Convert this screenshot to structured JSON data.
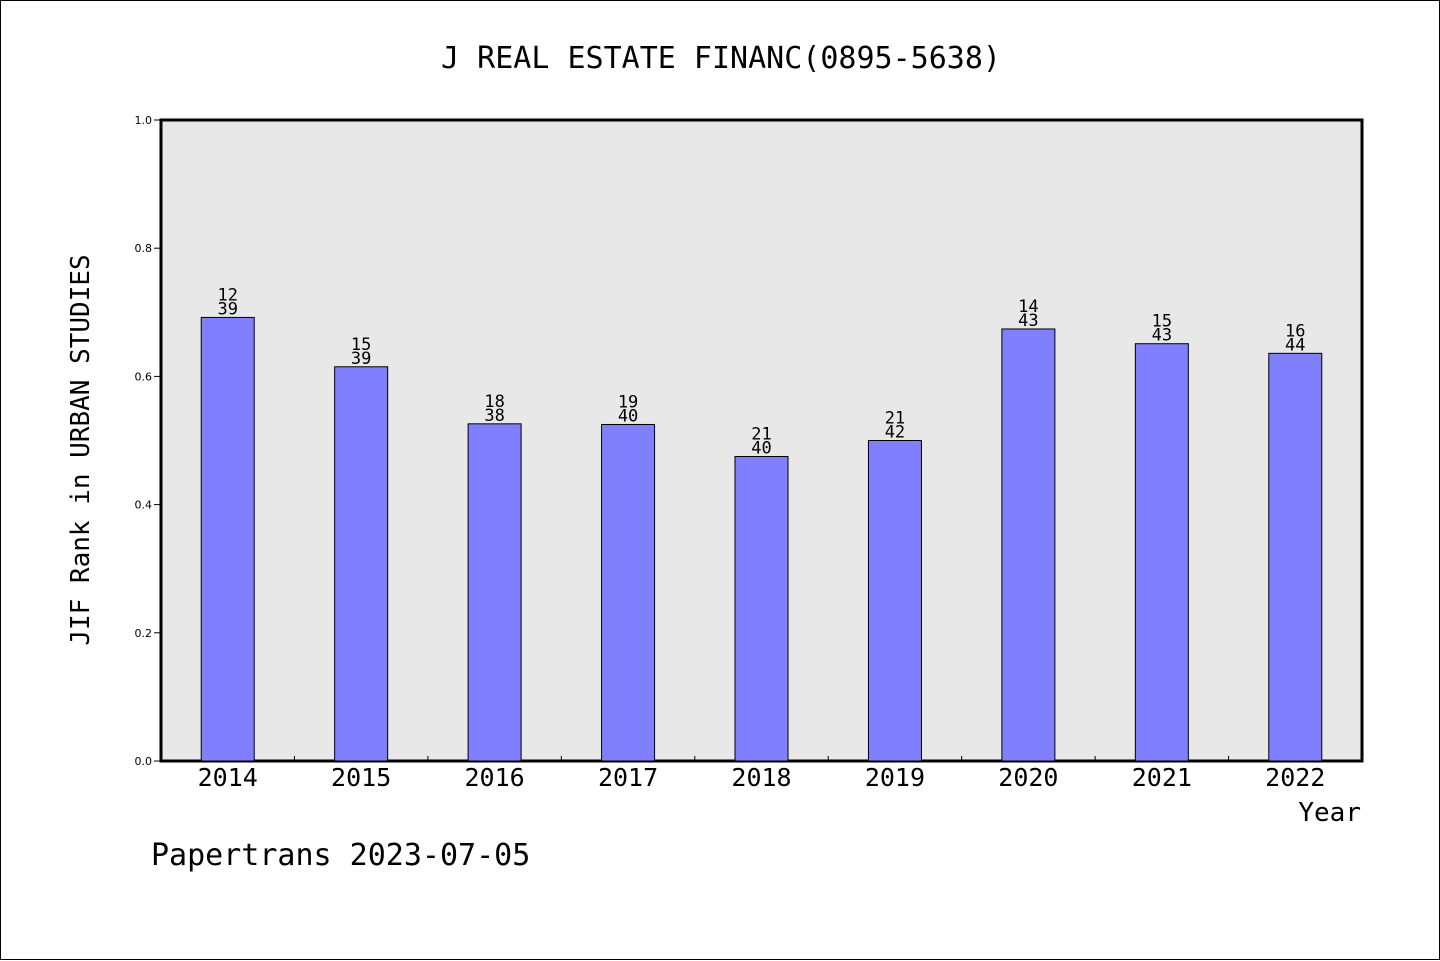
{
  "chart_data": {
    "type": "bar",
    "title": "J REAL ESTATE FINANC(0895-5638)",
    "xlabel": "Year",
    "ylabel": "JIF Rank in URBAN STUDIES",
    "ylim": [
      0,
      1.0
    ],
    "yticks": [
      "0.0",
      "0.2",
      "0.4",
      "0.6",
      "0.8",
      "1.0"
    ],
    "categories": [
      "2014",
      "2015",
      "2016",
      "2017",
      "2018",
      "2019",
      "2020",
      "2021",
      "2022"
    ],
    "values": [
      0.692,
      0.615,
      0.526,
      0.525,
      0.475,
      0.5,
      0.674,
      0.651,
      0.636
    ],
    "labels_top": [
      "12",
      "15",
      "18",
      "19",
      "21",
      "21",
      "14",
      "15",
      "16"
    ],
    "labels_bottom": [
      "39",
      "39",
      "38",
      "40",
      "40",
      "42",
      "43",
      "43",
      "44"
    ],
    "grid": false,
    "colors": {
      "bar": "#8080ff",
      "plot_bg": "#e8e8e8",
      "border": "#000000"
    }
  },
  "footer": {
    "text": "Papertrans 2023-07-05"
  }
}
